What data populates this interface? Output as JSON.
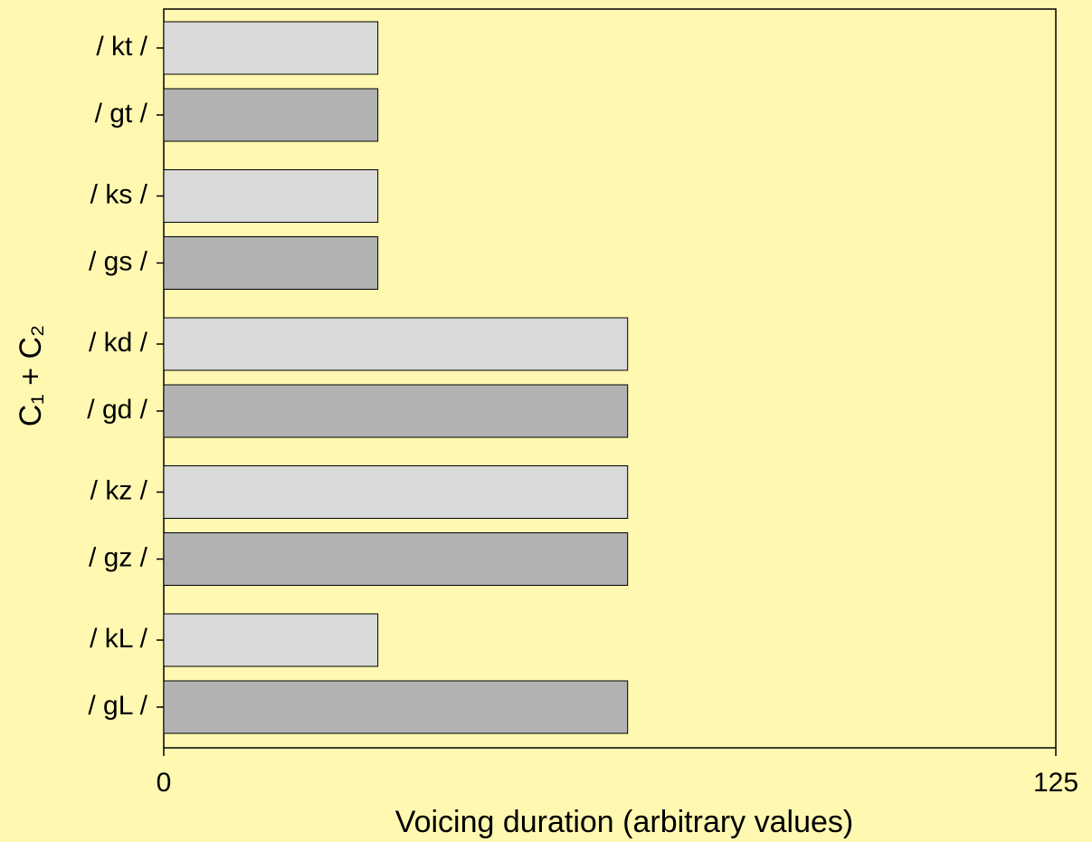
{
  "chart_data": {
    "type": "hbar",
    "x_label": "Voicing duration (arbitrary values)",
    "y_label": "C₁ + C₂",
    "categories": [
      "/ kt /",
      "/ gt /",
      "/ ks /",
      "/ gs /",
      "/ kd /",
      "/ gd /",
      "/ kz /",
      "/ gz /",
      "/ kL /",
      "/ gL /"
    ],
    "values": [
      30,
      30,
      30,
      30,
      65,
      65,
      65,
      65,
      30,
      65
    ],
    "colors": [
      "#d9d9d9",
      "#b2b2b2",
      "#d9d9d9",
      "#b2b2b2",
      "#d9d9d9",
      "#b2b2b2",
      "#d9d9d9",
      "#b2b2b2",
      "#d9d9d9",
      "#b2b2b2"
    ],
    "xlim": [
      0,
      125
    ],
    "xticks": [
      0,
      125
    ]
  }
}
